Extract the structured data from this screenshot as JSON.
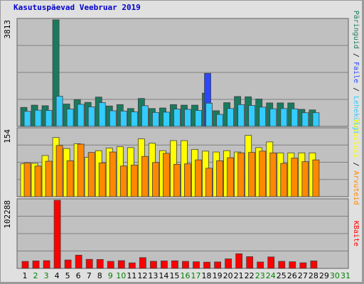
{
  "chart_data": {
    "type": "bar",
    "title": "Kasutuspäevad Veebruar 2019",
    "categories": [
      "1",
      "2",
      "3",
      "4",
      "5",
      "6",
      "7",
      "8",
      "9",
      "10",
      "11",
      "12",
      "13",
      "14",
      "15",
      "16",
      "17",
      "18",
      "19",
      "20",
      "21",
      "22",
      "23",
      "24",
      "25",
      "26",
      "27",
      "28",
      "29",
      "30",
      "31"
    ],
    "weekend_days": [
      "2",
      "3",
      "9",
      "10",
      "16",
      "17",
      "23",
      "24",
      "30",
      "31"
    ],
    "colors": {
      "weekday_label": "#000000",
      "weekend_label": "#008000",
      "visits": "#1a7a5e",
      "pages": "#33ccff",
      "files": "#2a47ff",
      "hits": "#ffff00",
      "kbytes": "#ff0000",
      "visits_panel_sites": "#ff8800"
    },
    "panels": [
      {
        "name": "hits-files-pages",
        "ymax_label": "3813",
        "ymax": 3813,
        "legend": [
          {
            "text": "Päringuid",
            "color": "#1a7a5e"
          },
          {
            "text": "Faile",
            "color": "#2a47ff"
          },
          {
            "text": "Lehekülgi",
            "color": "#33ccff"
          }
        ],
        "legend_separator": " / ",
        "series": [
          {
            "name": "Päringuid",
            "values": [
              680,
              760,
              740,
              3813,
              800,
              960,
              860,
              1050,
              730,
              780,
              640,
              1000,
              640,
              660,
              780,
              760,
              760,
              1190,
              560,
              850,
              1070,
              1060,
              980,
              840,
              840,
              840,
              610,
              590,
              0,
              0,
              0
            ]
          },
          {
            "name": "Faile",
            "values": [
              0,
              0,
              0,
              0,
              0,
              0,
              0,
              0,
              0,
              0,
              0,
              0,
              0,
              0,
              0,
              0,
              0,
              1900,
              0,
              0,
              0,
              0,
              0,
              0,
              0,
              0,
              0,
              0,
              0,
              0,
              0
            ]
          },
          {
            "name": "Lehekülgi",
            "values": [
              540,
              580,
              570,
              1080,
              620,
              790,
              700,
              850,
              560,
              550,
              520,
              740,
              500,
              510,
              620,
              610,
              570,
              830,
              430,
              640,
              780,
              750,
              690,
              630,
              640,
              630,
              490,
              490,
              0,
              0,
              0
            ]
          }
        ]
      },
      {
        "name": "visits-sites",
        "ymax_label": "154",
        "ymax": 154,
        "legend": [
          {
            "text": "Kulastusi",
            "color": "#ffff00"
          },
          {
            "text": "Arvuteid",
            "color": "#ff8800"
          }
        ],
        "legend_separator": " / ",
        "series": [
          {
            "name": "Kulastusi",
            "values": [
              75,
              76,
              94,
              135,
              110,
              121,
              90,
              105,
              111,
              114,
              112,
              132,
              122,
              105,
              128,
              128,
              108,
              104,
              102,
              105,
              102,
              140,
              112,
              125,
              100,
              100,
              100,
              100,
              0,
              0,
              0
            ]
          },
          {
            "name": "Arvuteid",
            "values": [
              77,
              70,
              81,
              117,
              82,
              120,
              101,
              77,
              102,
              70,
              72,
              92,
              78,
              99,
              74,
              75,
              84,
              65,
              82,
              89,
              100,
              101,
              104,
              100,
              76,
              88,
              80,
              84,
              0,
              0,
              0
            ]
          }
        ]
      },
      {
        "name": "kbytes",
        "ymax_label": "102288",
        "ymax": 102288,
        "legend": [
          {
            "text": "KBaite",
            "color": "#ff0000"
          }
        ],
        "legend_separator": "",
        "series": [
          {
            "name": "KBaite",
            "values": [
              10500,
              11200,
              11600,
              102288,
              12600,
              19900,
              13600,
              13400,
              10600,
              11600,
              8300,
              16200,
              10700,
              11200,
              11400,
              10600,
              10000,
              9400,
              9700,
              14300,
              22000,
              17600,
              9600,
              17200,
              10600,
              10000,
              8400,
              11200,
              0,
              0,
              0
            ]
          }
        ]
      }
    ]
  }
}
